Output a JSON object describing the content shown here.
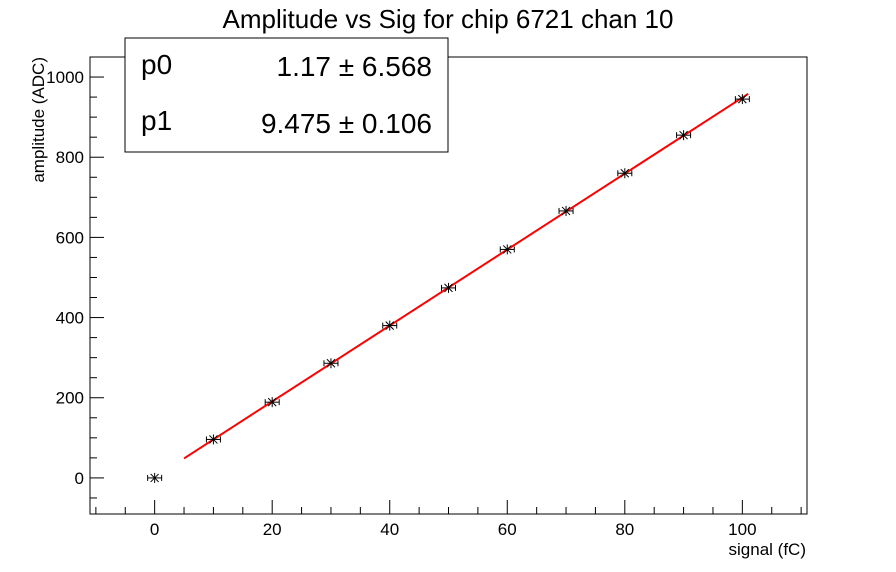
{
  "chart_data": {
    "type": "scatter",
    "title": "Amplitude vs Sig for chip 6721 chan 10",
    "xlabel": "signal (fC)",
    "ylabel": "amplitude (ADC)",
    "xlim": [
      -11,
      111
    ],
    "ylim": [
      -90,
      1050
    ],
    "x_ticks": [
      0,
      20,
      40,
      60,
      80,
      100
    ],
    "y_ticks": [
      0,
      200,
      400,
      600,
      800,
      1000
    ],
    "series": [
      {
        "points": [
          {
            "x": 0,
            "y": 0
          },
          {
            "x": 10,
            "y": 96
          },
          {
            "x": 20,
            "y": 189
          },
          {
            "x": 30,
            "y": 286
          },
          {
            "x": 40,
            "y": 380
          },
          {
            "x": 50,
            "y": 474
          },
          {
            "x": 60,
            "y": 570
          },
          {
            "x": 70,
            "y": 666
          },
          {
            "x": 80,
            "y": 760
          },
          {
            "x": 90,
            "y": 855
          },
          {
            "x": 100,
            "y": 945
          }
        ]
      }
    ],
    "fit": {
      "color": "#ff0000",
      "x_range": [
        5,
        101
      ],
      "p0": 1.17,
      "p1": 9.475
    },
    "stats_box": {
      "rows": [
        {
          "name": "p0",
          "value": "1.17 ± 6.568"
        },
        {
          "name": "p1",
          "value": "9.475 ± 0.106"
        }
      ]
    },
    "grid": false
  }
}
